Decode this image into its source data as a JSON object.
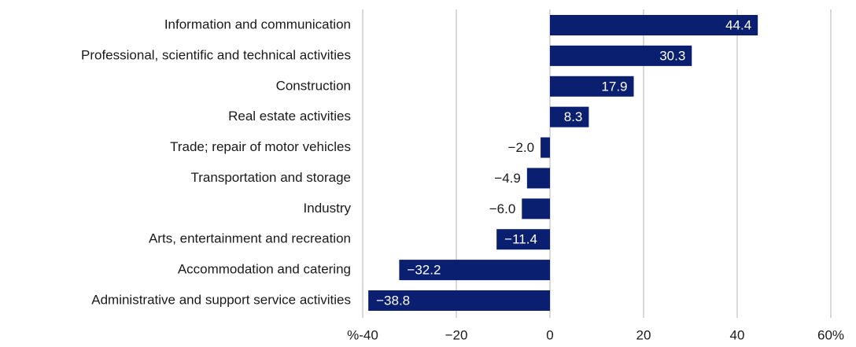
{
  "chart_data": {
    "type": "bar",
    "orientation": "horizontal",
    "categories": [
      "Information and communication",
      "Professional, scientific and technical activities",
      "Construction",
      "Real estate activities",
      "Trade; repair of motor vehicles",
      "Transportation and storage",
      "Industry",
      "Arts, entertainment and recreation",
      "Accommodation and catering",
      "Administrative and support service activities"
    ],
    "values": [
      44.4,
      30.3,
      17.9,
      8.3,
      -2.0,
      -4.9,
      -6.0,
      -11.4,
      -32.2,
      -38.8
    ],
    "value_labels": [
      "44.4",
      "30.3",
      "17.9",
      "8.3",
      "−2.0",
      "−4.9",
      "−6.0",
      "−11.4",
      "−32.2",
      "−38.8"
    ],
    "color": "#0b1f71",
    "xlim": [
      -40,
      60
    ],
    "xticks": [
      {
        "value": -40,
        "label": "%-40"
      },
      {
        "value": -20,
        "label": "−20"
      },
      0,
      20,
      40,
      {
        "value": 60,
        "label": "60%"
      }
    ],
    "grid": true
  }
}
